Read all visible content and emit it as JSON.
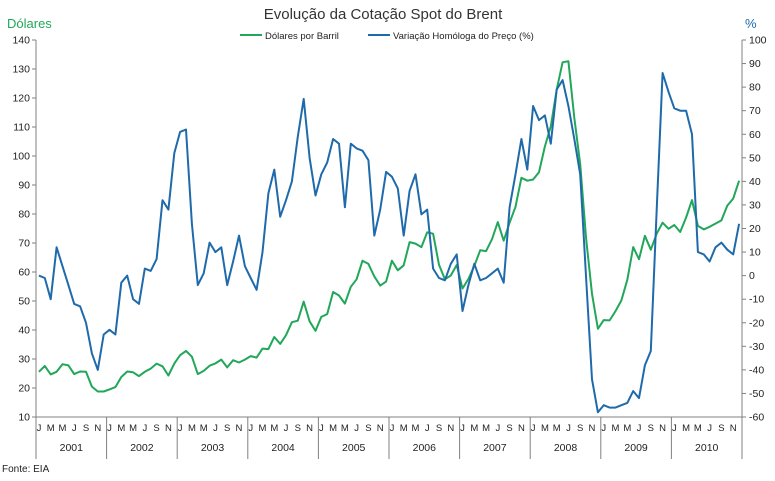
{
  "chart_data": {
    "type": "line",
    "title": "Evolução da Cotação Spot do Brent",
    "source": "Fonte: EIA",
    "left_axis": {
      "label": "Dólares",
      "ylim": [
        10,
        140
      ],
      "ticks": [
        10,
        20,
        30,
        40,
        50,
        60,
        70,
        80,
        90,
        100,
        110,
        120,
        130,
        140
      ]
    },
    "right_axis": {
      "label": "%",
      "ylim": [
        -60,
        100
      ],
      "ticks": [
        -60,
        -50,
        -40,
        -30,
        -20,
        -10,
        0,
        10,
        20,
        30,
        40,
        50,
        60,
        70,
        80,
        90,
        100
      ]
    },
    "month_labels": [
      "J",
      "M",
      "M",
      "J",
      "S",
      "N"
    ],
    "years": [
      "2001",
      "2002",
      "2003",
      "2004",
      "2005",
      "2006",
      "2007",
      "2008",
      "2009",
      "2010"
    ],
    "series": [
      {
        "name": "Dólares por Barril",
        "axis": "left",
        "color": "#22a75a",
        "values": [
          25.6,
          27.6,
          24.7,
          25.6,
          28.2,
          27.8,
          24.8,
          25.7,
          25.6,
          20.5,
          18.8,
          18.8,
          19.5,
          20.3,
          23.8,
          25.7,
          25.4,
          24.1,
          25.6,
          26.7,
          28.4,
          27.5,
          24.3,
          28.4,
          31.3,
          32.8,
          30.8,
          24.8,
          25.9,
          27.7,
          28.5,
          29.8,
          27.1,
          29.6,
          28.8,
          29.8,
          31.0,
          30.5,
          33.6,
          33.4,
          37.6,
          35.2,
          38.2,
          42.7,
          43.2,
          49.8,
          43.0,
          39.7,
          44.5,
          45.5,
          53.1,
          51.9,
          49.1,
          54.9,
          57.5,
          63.9,
          62.8,
          58.5,
          55.3,
          56.7,
          63.9,
          60.6,
          62.3,
          70.3,
          69.8,
          68.6,
          73.7,
          73.2,
          62.5,
          57.5,
          58.8,
          62.4,
          54.3,
          57.6,
          62.1,
          67.5,
          67.2,
          71.3,
          77.2,
          70.8,
          77.0,
          82.5,
          92.5,
          91.5,
          91.9,
          94.4,
          103.3,
          110.2,
          122.9,
          132.3,
          132.7,
          113.2,
          97.2,
          71.6,
          52.5,
          40.4,
          43.4,
          43.3,
          46.5,
          50.2,
          57.3,
          68.6,
          64.4,
          72.5,
          67.7,
          73.2,
          77.0,
          74.9,
          76.2,
          73.8,
          78.8,
          84.8,
          75.9,
          74.7,
          75.6,
          76.7,
          77.8,
          82.9,
          85.3,
          91.5
        ]
      },
      {
        "name": "Variação Homóloga do Preço (%)",
        "axis": "right",
        "color": "#1f6aab",
        "values": [
          0,
          -1,
          -10,
          12,
          4,
          -4,
          -12,
          -13,
          -20,
          -33,
          -40,
          -25,
          -23,
          -25,
          -3,
          0,
          -10,
          -12,
          3,
          2,
          7,
          32,
          28,
          52,
          61,
          62,
          22,
          -4,
          1,
          14,
          10,
          12,
          -4,
          6,
          17,
          4,
          -1,
          -6,
          10,
          35,
          45,
          25,
          32,
          40,
          59,
          75,
          50,
          34,
          43,
          48,
          58,
          56,
          29,
          56,
          54,
          53,
          49,
          17,
          28,
          44,
          42,
          37,
          17,
          36,
          43,
          26,
          28,
          3,
          -1,
          -2,
          5,
          9,
          -15,
          -4,
          5,
          -2,
          -1,
          1,
          3,
          -3,
          29,
          43,
          58,
          45,
          72,
          66,
          68,
          56,
          79,
          83,
          72,
          58,
          43,
          -1,
          -44,
          -58,
          -55,
          -56,
          -56,
          -55,
          -54,
          -49,
          -52,
          -38,
          -32,
          28,
          86,
          78,
          71,
          70,
          70,
          60,
          10,
          9,
          6,
          12,
          14,
          11,
          9,
          22
        ]
      }
    ]
  }
}
